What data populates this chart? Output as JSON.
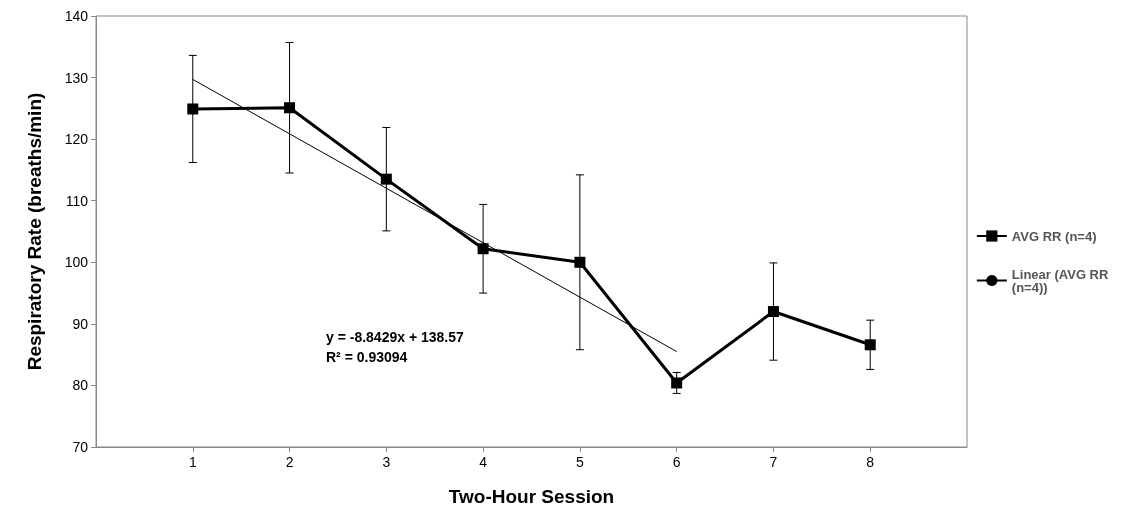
{
  "chart_data": {
    "type": "line",
    "xlabel": "Two-Hour Session",
    "ylabel": "Respiratory Rate (breaths/min)",
    "x": [
      1,
      2,
      3,
      4,
      5,
      6,
      7,
      8
    ],
    "xlim": [
      0,
      9
    ],
    "xticks": [
      1,
      2,
      3,
      4,
      5,
      6,
      7,
      8
    ],
    "ylim": [
      70,
      140
    ],
    "yticks": [
      70,
      80,
      90,
      100,
      110,
      120,
      130,
      140
    ],
    "series": [
      {
        "name": "AVG RR (n=4)",
        "color": "#000000",
        "marker": "square",
        "values": [
          124.9,
          125.1,
          113.5,
          102.2,
          100,
          80.4,
          92,
          86.6
        ],
        "errors": [
          8.7,
          10.6,
          8.4,
          7.2,
          14.2,
          1.7,
          7.9,
          4.0
        ]
      },
      {
        "name": "Linear (AVG RR (n=4))",
        "type": "line",
        "color": "#000000",
        "marker": "none",
        "x": [
          1,
          6
        ],
        "values": [
          129.7,
          85.5
        ]
      }
    ],
    "annotations": [
      "y = -8.8429x + 138.57",
      "R² = 0.93094"
    ],
    "legend": "right",
    "grid": false
  }
}
